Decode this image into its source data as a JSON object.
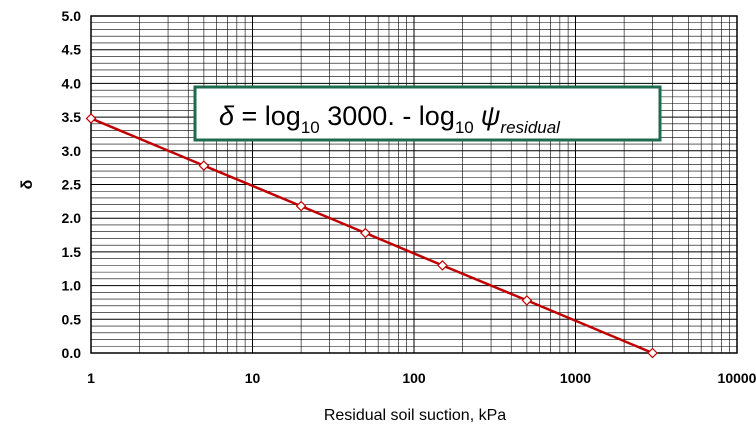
{
  "chart_data": {
    "type": "line",
    "title": "",
    "xlabel": "Residual soil suction, kPa",
    "ylabel": "δ",
    "x_scale": "log",
    "xlim": [
      1,
      10000
    ],
    "ylim": [
      0,
      5
    ],
    "grid": true,
    "x_tick_labels": [
      "1",
      "10",
      "100",
      "1000",
      "10000"
    ],
    "y_tick_labels": [
      "0.0",
      "0.5",
      "1.0",
      "1.5",
      "2.0",
      "2.5",
      "3.0",
      "3.5",
      "4.0",
      "4.5",
      "5.0"
    ],
    "series": [
      {
        "color": "#c00000",
        "marker_color": "#c00000",
        "marker": "diamond",
        "points": [
          {
            "x": 1,
            "y": 3.48
          },
          {
            "x": 5,
            "y": 2.78
          },
          {
            "x": 20,
            "y": 2.18
          },
          {
            "x": 50,
            "y": 1.78
          },
          {
            "x": 150,
            "y": 1.3
          },
          {
            "x": 500,
            "y": 0.78
          },
          {
            "x": 3000,
            "y": 0.0
          }
        ]
      }
    ],
    "annotation": {
      "border_color": "#1f6b4f",
      "delta": "δ",
      "eq": " = log",
      "sub1": "10",
      "mid": " 3000. - log",
      "sub2": "10",
      "psi": "ψ",
      "psi_sub": "residual"
    }
  }
}
